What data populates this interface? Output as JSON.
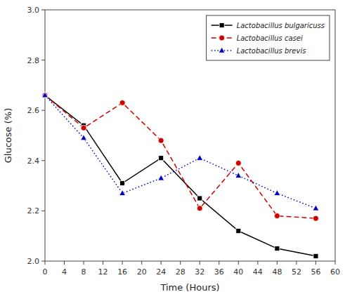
{
  "chart_data": {
    "type": "line",
    "x_label": "Time (Hours)",
    "y_label": "Glucose (%)",
    "x": [
      0,
      8,
      16,
      24,
      32,
      40,
      48,
      56
    ],
    "series": [
      {
        "name": "Lactobacillus bulgaricuss",
        "color": "#000000",
        "marker": "square",
        "line_style": "solid",
        "values": [
          2.66,
          2.54,
          2.31,
          2.41,
          2.25,
          2.12,
          2.05,
          2.02
        ]
      },
      {
        "name": "Lactobacillus casei",
        "color": "#cc0000",
        "marker": "circle",
        "line_style": "dashed",
        "values": [
          2.66,
          2.53,
          2.63,
          2.48,
          2.21,
          2.39,
          2.18,
          2.17
        ]
      },
      {
        "name": "Lactobacillus brevis",
        "color": "#0000bb",
        "marker": "triangle",
        "line_style": "dotted",
        "values": [
          2.66,
          2.49,
          2.27,
          2.33,
          2.41,
          2.34,
          2.27,
          2.21
        ]
      }
    ],
    "xlim": [
      0,
      60
    ],
    "ylim": [
      2.0,
      3.0
    ],
    "xticks": [
      0,
      4,
      8,
      12,
      16,
      20,
      24,
      28,
      32,
      36,
      40,
      44,
      48,
      52,
      56,
      60
    ],
    "yticks": [
      {
        "value": 2.0,
        "label": "2.0"
      },
      2.2,
      2.4,
      2.6,
      2.8,
      {
        "value": 3.0,
        "label": "3.0"
      }
    ],
    "legend": "upper right",
    "grid": false
  }
}
